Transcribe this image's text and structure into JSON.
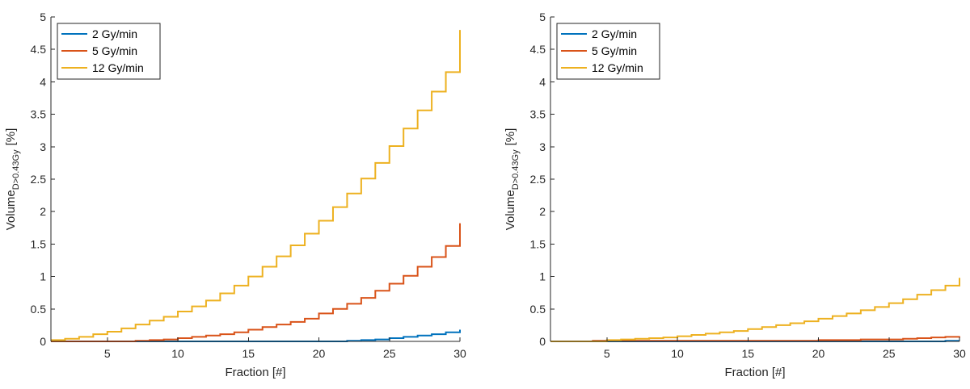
{
  "chart_data": [
    {
      "type": "line",
      "step": true,
      "xlabel": "Fraction [#]",
      "ylabel": "Volume",
      "ylabel_subscript": "D>0.43Gy",
      "ylabel_unit": "[%]",
      "xlim": [
        1,
        30
      ],
      "ylim": [
        0,
        5
      ],
      "xticks": [
        5,
        10,
        15,
        20,
        25,
        30
      ],
      "yticks": [
        0,
        0.5,
        1,
        1.5,
        2,
        2.5,
        3,
        3.5,
        4,
        4.5,
        5
      ],
      "grid": false,
      "legend": "top-left",
      "x": [
        1,
        2,
        3,
        4,
        5,
        6,
        7,
        8,
        9,
        10,
        11,
        12,
        13,
        14,
        15,
        16,
        17,
        18,
        19,
        20,
        21,
        22,
        23,
        24,
        25,
        26,
        27,
        28,
        29,
        30
      ],
      "series": [
        {
          "name": "2   Gy/min",
          "color": "#0072BD",
          "values": [
            0,
            0,
            0,
            0,
            0,
            0,
            0,
            0,
            0,
            0,
            0,
            0,
            0,
            0,
            0,
            0,
            0,
            0,
            0,
            0,
            0,
            0.01,
            0.02,
            0.03,
            0.05,
            0.07,
            0.09,
            0.11,
            0.14,
            0.18
          ]
        },
        {
          "name": "5   Gy/min",
          "color": "#D95319",
          "values": [
            0,
            0,
            0,
            0,
            0,
            0,
            0.01,
            0.02,
            0.03,
            0.05,
            0.07,
            0.09,
            0.11,
            0.14,
            0.18,
            0.22,
            0.26,
            0.3,
            0.35,
            0.43,
            0.5,
            0.58,
            0.67,
            0.78,
            0.89,
            1.01,
            1.15,
            1.3,
            1.47,
            1.82
          ]
        },
        {
          "name": "12 Gy/min",
          "color": "#EDB120",
          "values": [
            0.02,
            0.04,
            0.07,
            0.11,
            0.15,
            0.2,
            0.26,
            0.32,
            0.38,
            0.46,
            0.54,
            0.63,
            0.74,
            0.86,
            1,
            1.15,
            1.31,
            1.48,
            1.66,
            1.86,
            2.07,
            2.28,
            2.51,
            2.75,
            3.01,
            3.28,
            3.56,
            3.85,
            4.15,
            4.8
          ]
        }
      ]
    },
    {
      "type": "line",
      "step": true,
      "xlabel": "Fraction [#]",
      "ylabel": "Volume",
      "ylabel_subscript": "D>0.43Gy",
      "ylabel_unit": "[%]",
      "xlim": [
        1,
        30
      ],
      "ylim": [
        0,
        5
      ],
      "xticks": [
        5,
        10,
        15,
        20,
        25,
        30
      ],
      "yticks": [
        0,
        0.5,
        1,
        1.5,
        2,
        2.5,
        3,
        3.5,
        4,
        4.5,
        5
      ],
      "grid": false,
      "legend": "top-left",
      "x": [
        1,
        2,
        3,
        4,
        5,
        6,
        7,
        8,
        9,
        10,
        11,
        12,
        13,
        14,
        15,
        16,
        17,
        18,
        19,
        20,
        21,
        22,
        23,
        24,
        25,
        26,
        27,
        28,
        29,
        30
      ],
      "series": [
        {
          "name": "2   Gy/min",
          "color": "#0072BD",
          "values": [
            0,
            0,
            0,
            0,
            0,
            0,
            0,
            0,
            0,
            0,
            0,
            0,
            0,
            0,
            0,
            0,
            0,
            0,
            0,
            0,
            0,
            0,
            0,
            0,
            0,
            0,
            0,
            0,
            0.01,
            0.01
          ]
        },
        {
          "name": "5   Gy/min",
          "color": "#D95319",
          "values": [
            0,
            0,
            0,
            0.01,
            0.01,
            0.01,
            0.01,
            0.01,
            0.01,
            0.01,
            0.01,
            0.01,
            0.01,
            0.01,
            0.01,
            0.01,
            0.01,
            0.01,
            0.01,
            0.02,
            0.02,
            0.02,
            0.03,
            0.03,
            0.03,
            0.04,
            0.05,
            0.06,
            0.07,
            0.08
          ]
        },
        {
          "name": "12 Gy/min",
          "color": "#EDB120",
          "values": [
            0,
            0,
            0,
            0,
            0.02,
            0.03,
            0.04,
            0.05,
            0.06,
            0.08,
            0.1,
            0.12,
            0.14,
            0.16,
            0.19,
            0.22,
            0.25,
            0.28,
            0.31,
            0.35,
            0.39,
            0.43,
            0.48,
            0.53,
            0.59,
            0.65,
            0.72,
            0.79,
            0.86,
            0.98
          ]
        }
      ]
    }
  ]
}
